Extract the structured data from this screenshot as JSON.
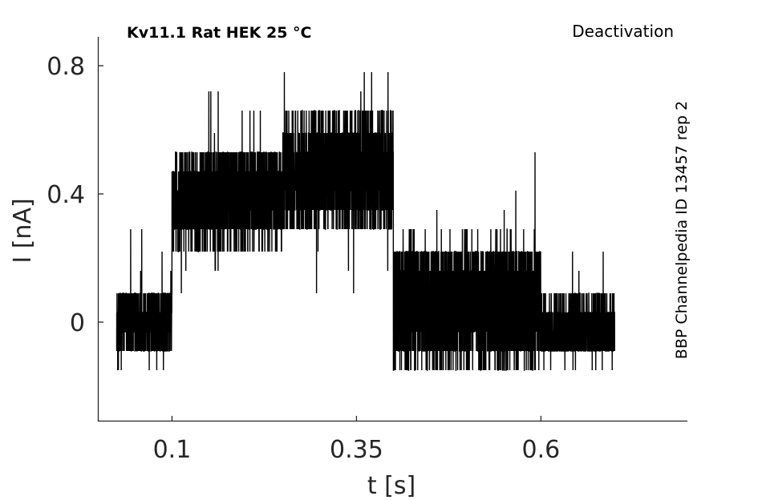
{
  "chart_data": {
    "type": "line",
    "title": "Kv11.1  Rat  HEK  25 °C",
    "annotation_right": "Deactivation",
    "side_label": "BBP Channelpedia ID 13457 rep 2",
    "xlabel": "t [s]",
    "ylabel": "I [nA]",
    "xlim": [
      -0.0005,
      0.7985
    ],
    "ylim": [
      -0.31,
      0.89
    ],
    "xticks": [
      0.1,
      0.35,
      0.6
    ],
    "xtick_labels": [
      "0.1",
      "0.35",
      "0.6"
    ],
    "yticks": [
      0,
      0.4,
      0.8
    ],
    "ytick_labels": [
      "0",
      "0.4",
      "0.8"
    ],
    "grid": false,
    "line_color": "#000000",
    "noise_levels": [
      -0.15,
      -0.09,
      -0.03,
      0.03,
      0.09,
      0.16,
      0.22,
      0.29,
      0.35,
      0.41,
      0.47,
      0.53,
      0.59,
      0.66,
      0.72,
      0.78
    ],
    "segments": [
      {
        "t_start": 0.025,
        "t_end": 0.1,
        "mean": 0.0,
        "spread": 0.1
      },
      {
        "t_start": 0.1,
        "t_end": 0.25,
        "mean": 0.39,
        "spread": 0.15
      },
      {
        "t_start": 0.25,
        "t_end": 0.4,
        "mean": 0.47,
        "spread": 0.18
      },
      {
        "t_start": 0.4,
        "t_end": 0.6,
        "mean": 0.06,
        "spread": 0.2
      },
      {
        "t_start": 0.6,
        "t_end": 0.7,
        "mean": -0.02,
        "spread": 0.1
      }
    ]
  }
}
